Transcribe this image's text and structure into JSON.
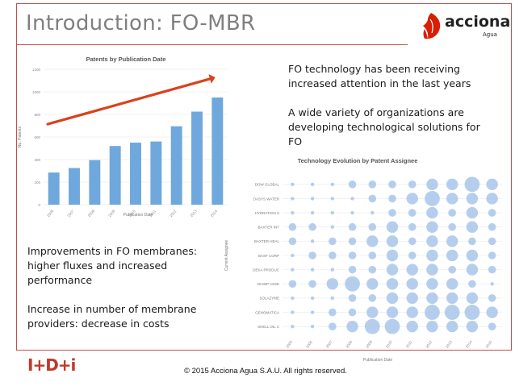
{
  "slide": {
    "title": "Introduction: FO-MBR",
    "accent_color": "#c0504d",
    "logo": {
      "name": "acciona",
      "sub": "Agua",
      "icon": "leaf-logo-icon"
    },
    "text_top": [
      "FO technology has been receiving",
      "increased attention in the last years",
      "",
      "A wide variety of organizations are",
      "developing technological solutions for",
      "FO"
    ],
    "text_left": [
      "Improvements in FO membranes:",
      "higher fluxes and increased",
      "performance",
      "",
      "Increase in number of membrane",
      "providers: decrease in costs"
    ],
    "footer": "© 2015 Acciona Agua S.A.U. All rights reserved.",
    "brand_mark": "I+D+i"
  },
  "chart_data": [
    {
      "type": "bar",
      "title": "Patents by Publication Date",
      "xlabel": "Publication Date",
      "ylabel": "No. Patents",
      "categories": [
        "2006",
        "2007",
        "2008",
        "2009",
        "2010",
        "2011",
        "2012",
        "2013",
        "2014"
      ],
      "values": [
        285,
        325,
        395,
        520,
        550,
        560,
        695,
        825,
        950
      ],
      "ylim": [
        0,
        1200
      ],
      "yticks": [
        "0",
        "200",
        "400",
        "600",
        "800",
        "1000",
        "1200"
      ],
      "bar_color": "#6fa8dc",
      "grid": true,
      "annotation": "trend-arrow",
      "arrow_color": "#d9421c"
    },
    {
      "type": "scatter",
      "title": "Technology Evolution by Patent Assignee",
      "xlabel": "Publication Date",
      "ylabel": "Current Assignee",
      "x_categories": [
        "2005",
        "2006",
        "2007",
        "2008",
        "2009",
        "2010",
        "2011",
        "2012",
        "2013",
        "2014",
        "2015"
      ],
      "y_categories": [
        "DOW GLOBAL",
        "OASYS WATER",
        "HYDRATION S",
        "BAXTER INT",
        "BAXTER HEAL",
        "BASF CORP",
        "DEKA PRODUC",
        "DIAMP ASSE",
        "SOLAZYME",
        "GENOMATICA",
        "SHELL OIL C"
      ],
      "bubble_color": "#a9c6ea",
      "sizes": [
        [
          1,
          1,
          1,
          2,
          2,
          2,
          2,
          3,
          3,
          4,
          3
        ],
        [
          1,
          1,
          1,
          1,
          2,
          2,
          3,
          4,
          3,
          3,
          3
        ],
        [
          1,
          1,
          1,
          1,
          1,
          2,
          2,
          3,
          2,
          3,
          2
        ],
        [
          2,
          2,
          1,
          2,
          2,
          3,
          2,
          3,
          2,
          3,
          2
        ],
        [
          2,
          1,
          2,
          2,
          3,
          3,
          2,
          3,
          3,
          2,
          2
        ],
        [
          1,
          2,
          2,
          2,
          2,
          3,
          2,
          3,
          3,
          3,
          2
        ],
        [
          1,
          1,
          1,
          2,
          2,
          3,
          3,
          3,
          2,
          3,
          2
        ],
        [
          2,
          2,
          3,
          4,
          3,
          3,
          3,
          3,
          3,
          2,
          1
        ],
        [
          1,
          1,
          1,
          2,
          2,
          3,
          3,
          3,
          3,
          3,
          2
        ],
        [
          1,
          1,
          2,
          2,
          3,
          3,
          3,
          4,
          4,
          4,
          3
        ],
        [
          1,
          1,
          2,
          3,
          4,
          4,
          3,
          3,
          3,
          3,
          2
        ]
      ]
    }
  ]
}
